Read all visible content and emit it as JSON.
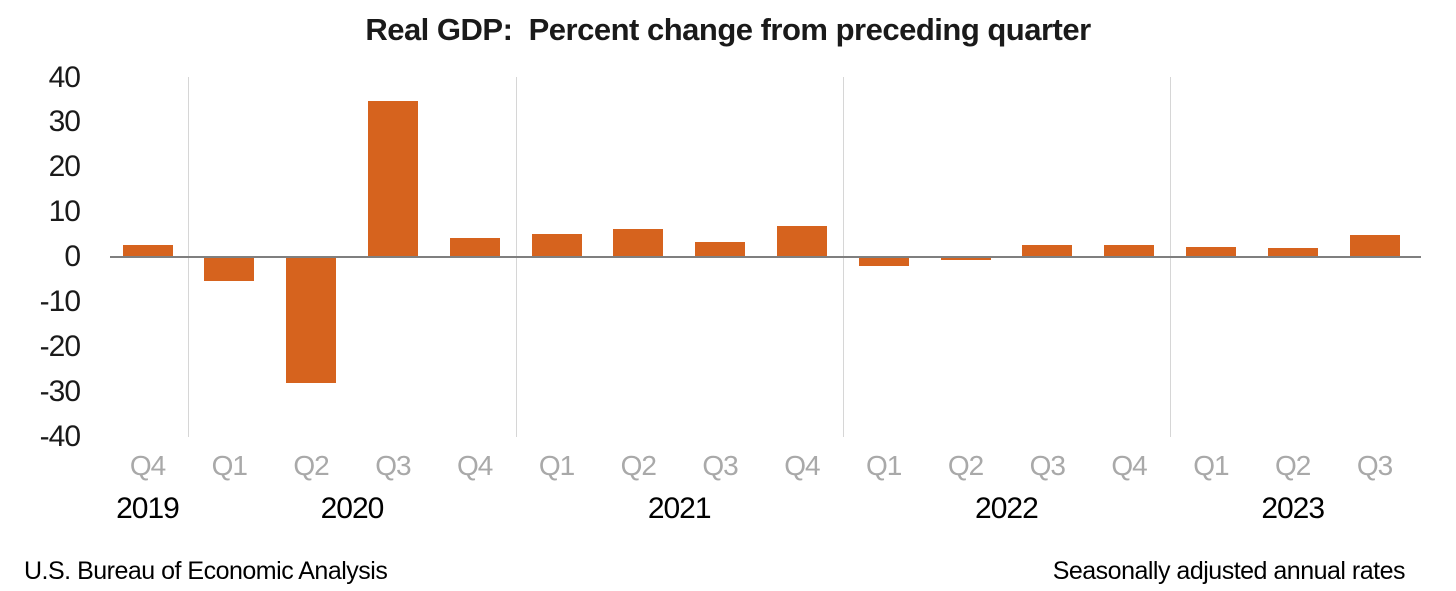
{
  "chart_data": {
    "type": "bar",
    "title": "Real GDP:  Percent change from preceding quarter",
    "categories": [
      "Q4 2019",
      "Q1 2020",
      "Q2 2020",
      "Q3 2020",
      "Q4 2020",
      "Q1 2021",
      "Q2 2021",
      "Q3 2021",
      "Q4 2021",
      "Q1 2022",
      "Q2 2022",
      "Q3 2022",
      "Q4 2022",
      "Q1 2023",
      "Q2 2023",
      "Q3 2023"
    ],
    "quarter_labels": [
      "Q4",
      "Q1",
      "Q2",
      "Q3",
      "Q4",
      "Q1",
      "Q2",
      "Q3",
      "Q4",
      "Q1",
      "Q2",
      "Q3",
      "Q4",
      "Q1",
      "Q2",
      "Q3"
    ],
    "year_groups": [
      {
        "label": "2019",
        "count": 1
      },
      {
        "label": "2020",
        "count": 4
      },
      {
        "label": "2021",
        "count": 4
      },
      {
        "label": "2022",
        "count": 4
      },
      {
        "label": "2023",
        "count": 3
      }
    ],
    "values": [
      2.6,
      -5.3,
      -28.0,
      34.8,
      4.2,
      5.2,
      6.2,
      3.3,
      7.0,
      -2.0,
      -0.6,
      2.7,
      2.6,
      2.2,
      2.1,
      4.9
    ],
    "yticks": [
      40,
      30,
      20,
      10,
      0,
      -10,
      -20,
      -30,
      -40
    ],
    "ylim": [
      -40,
      40
    ],
    "xlabel": "",
    "ylabel": "",
    "grid": "vertical-year-separators-only",
    "legend": "none",
    "bar_color": "#d6631e",
    "source_note": "U.S. Bureau of Economic Analysis",
    "unit_note": "Seasonally adjusted annual rates"
  }
}
